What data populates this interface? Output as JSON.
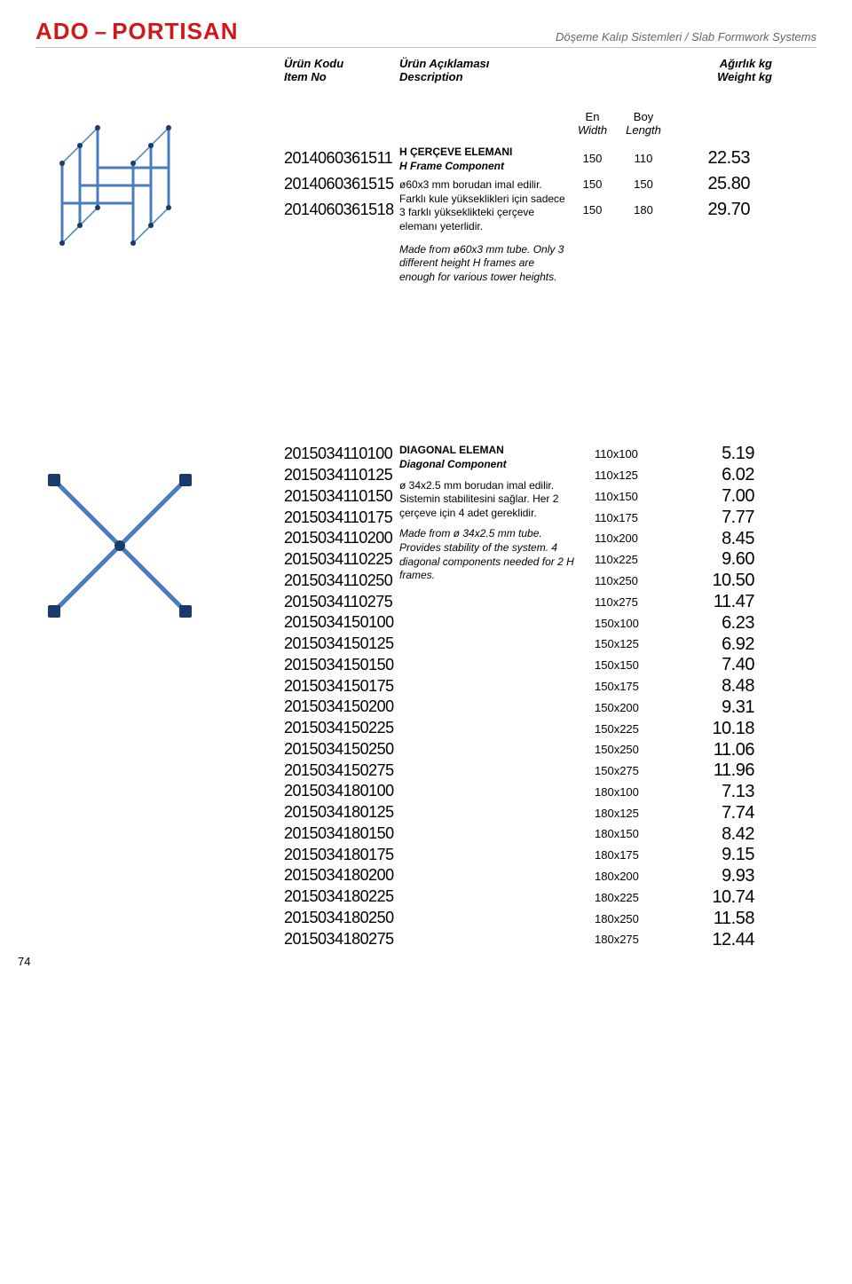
{
  "header": {
    "logo_ado": "ADO",
    "logo_dash": "–",
    "logo_portisan": "PORTISAN",
    "subtitle": "Döşeme Kalıp Sistemleri / Slab Formwork Systems"
  },
  "columns": {
    "code_tr": "Ürün Kodu",
    "code_en": "Item No",
    "desc_tr": "Ürün Açıklaması",
    "desc_en": "Description",
    "wt_tr": "Ağırlık kg",
    "wt_en": "Weight kg"
  },
  "table1": {
    "sub_en_tr": "En",
    "sub_en_en": "Width",
    "sub_boy_tr": "Boy",
    "sub_boy_en": "Length",
    "title_tr": "H ÇERÇEVE ELEMANI",
    "title_en": "H Frame Component",
    "body_tr": "ø60x3 mm borudan imal edilir. Farklı kule yükseklikleri için sadece 3 farklı yükseklikteki çerçeve elemanı yeterlidir.",
    "body_en": "Made from ø60x3 mm tube. Only 3 different height H frames are enough for various tower heights.",
    "rows": [
      {
        "code": "2014060361511",
        "en": "150",
        "boy": "110",
        "wt": "22.53"
      },
      {
        "code": "2014060361515",
        "en": "150",
        "boy": "150",
        "wt": "25.80"
      },
      {
        "code": "2014060361518",
        "en": "150",
        "boy": "180",
        "wt": "29.70"
      }
    ]
  },
  "table2": {
    "title_tr": "DIAGONAL ELEMAN",
    "title_en": "Diagonal Component",
    "body_tr": "ø 34x2.5 mm borudan imal edilir. Sistemin stabilitesini sağlar. Her 2 çerçeve için 4 adet gereklidir.",
    "body_en": "Made from ø 34x2.5 mm tube. Provides stability of the system. 4 diagonal components needed for 2 H frames.",
    "rows": [
      {
        "code": "2015034110100",
        "dim": "110x100",
        "wt": "5.19"
      },
      {
        "code": "2015034110125",
        "dim": "110x125",
        "wt": "6.02"
      },
      {
        "code": "2015034110150",
        "dim": "110x150",
        "wt": "7.00"
      },
      {
        "code": "2015034110175",
        "dim": "110x175",
        "wt": "7.77"
      },
      {
        "code": "2015034110200",
        "dim": "110x200",
        "wt": "8.45"
      },
      {
        "code": "2015034110225",
        "dim": "110x225",
        "wt": "9.60"
      },
      {
        "code": "2015034110250",
        "dim": "110x250",
        "wt": "10.50"
      },
      {
        "code": "2015034110275",
        "dim": "110x275",
        "wt": "11.47"
      },
      {
        "code": "2015034150100",
        "dim": "150x100",
        "wt": "6.23"
      },
      {
        "code": "2015034150125",
        "dim": "150x125",
        "wt": "6.92"
      },
      {
        "code": "2015034150150",
        "dim": "150x150",
        "wt": "7.40"
      },
      {
        "code": "2015034150175",
        "dim": "150x175",
        "wt": "8.48"
      },
      {
        "code": "2015034150200",
        "dim": "150x200",
        "wt": "9.31"
      },
      {
        "code": "2015034150225",
        "dim": "150x225",
        "wt": "10.18"
      },
      {
        "code": "2015034150250",
        "dim": "150x250",
        "wt": "11.06"
      },
      {
        "code": "2015034150275",
        "dim": "150x275",
        "wt": "11.96"
      },
      {
        "code": "2015034180100",
        "dim": "180x100",
        "wt": "7.13"
      },
      {
        "code": "2015034180125",
        "dim": "180x125",
        "wt": "7.74"
      },
      {
        "code": "2015034180150",
        "dim": "180x150",
        "wt": "8.42"
      },
      {
        "code": "2015034180175",
        "dim": "180x175",
        "wt": "9.15"
      },
      {
        "code": "2015034180200",
        "dim": "180x200",
        "wt": "9.93"
      },
      {
        "code": "2015034180225",
        "dim": "180x225",
        "wt": "10.74"
      },
      {
        "code": "2015034180250",
        "dim": "180x250",
        "wt": "11.58"
      },
      {
        "code": "2015034180275",
        "dim": "180x275",
        "wt": "12.44"
      }
    ]
  },
  "page_number": "74",
  "colors": {
    "brand": "#d01818",
    "frame": "#4a7dc0",
    "dark": "#1a3a6a"
  }
}
